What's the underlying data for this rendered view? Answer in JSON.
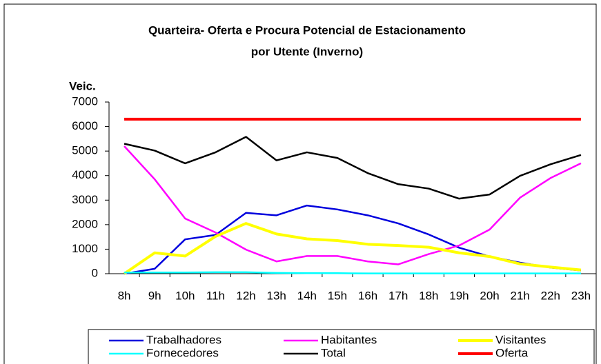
{
  "chart_data": {
    "type": "line",
    "title": "Quarteira- Oferta e Procura   Potencial de Estacionamento",
    "subtitle": "por Utente (Inverno)",
    "y_label": "Veic.",
    "categories": [
      "8h",
      "9h",
      "10h",
      "11h",
      "12h",
      "13h",
      "14h",
      "15h",
      "16h",
      "17h",
      "18h",
      "19h",
      "20h",
      "21h",
      "22h",
      "23h"
    ],
    "series": [
      {
        "name": "Trabalhadores",
        "color": "#0000dd",
        "values": [
          0,
          200,
          1400,
          1580,
          2480,
          2380,
          2780,
          2620,
          2380,
          2050,
          1600,
          1060,
          700,
          450,
          250,
          130
        ]
      },
      {
        "name": "Habitantes",
        "color": "#ff00ff",
        "values": [
          5200,
          3850,
          2250,
          1680,
          980,
          500,
          720,
          720,
          500,
          380,
          800,
          1150,
          1800,
          3100,
          3900,
          4500
        ]
      },
      {
        "name": "Visitantes",
        "color": "#ffff00",
        "values": [
          0,
          850,
          720,
          1520,
          2050,
          1620,
          1420,
          1350,
          1200,
          1150,
          1080,
          850,
          700,
          400,
          270,
          150
        ]
      },
      {
        "name": "Fornecedores",
        "color": "#00ffff",
        "values": [
          50,
          50,
          50,
          60,
          60,
          30,
          20,
          20,
          10,
          10,
          10,
          10,
          10,
          10,
          10,
          10
        ]
      },
      {
        "name": "Total",
        "color": "#000000",
        "values": [
          5300,
          5020,
          4500,
          4950,
          5580,
          4620,
          4950,
          4720,
          4100,
          3650,
          3470,
          3060,
          3230,
          3990,
          4460,
          4840
        ]
      },
      {
        "name": "Oferta",
        "color": "#ff0000",
        "values": [
          6300,
          6300,
          6300,
          6300,
          6300,
          6300,
          6300,
          6300,
          6300,
          6300,
          6300,
          6300,
          6300,
          6300,
          6300,
          6300
        ]
      }
    ],
    "ylim": [
      0,
      7000
    ],
    "yticks": [
      0,
      1000,
      2000,
      3000,
      4000,
      5000,
      6000,
      7000
    ],
    "grid": false
  }
}
